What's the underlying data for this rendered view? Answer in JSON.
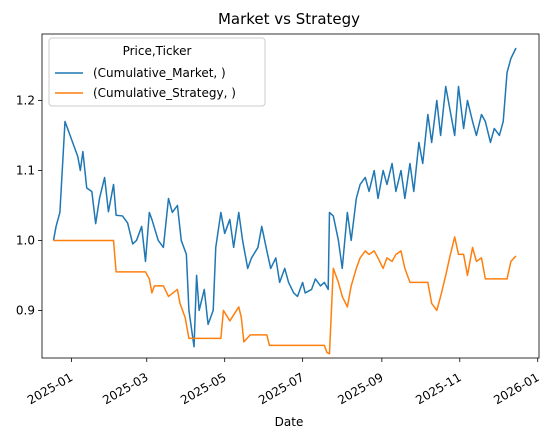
{
  "chart_data": {
    "type": "line",
    "title": "Market vs Strategy",
    "xlabel": "Date",
    "ylabel": "",
    "xlim": [
      "2024-12-09",
      "2026-01-02"
    ],
    "ylim": [
      0.832,
      1.295
    ],
    "x_ticks": [
      "2025-01-01",
      "2025-03-01",
      "2025-05-01",
      "2025-07-01",
      "2025-09-01",
      "2025-11-01",
      "2026-01-01"
    ],
    "x_tick_labels": [
      "2025-01",
      "2025-03",
      "2025-05",
      "2025-07",
      "2025-09",
      "2025-11",
      "2026-01"
    ],
    "y_ticks": [
      0.9,
      1.0,
      1.1,
      1.2
    ],
    "y_tick_labels": [
      "0.9",
      "1.0",
      "1.1",
      "1.2"
    ],
    "grid": false,
    "legend": {
      "title": "Price,Ticker",
      "position": "top-left"
    },
    "series": [
      {
        "name": "(Cumulative_Market, )",
        "color": "#1f77b4",
        "points": [
          [
            "2024-12-18",
            1.0
          ],
          [
            "2024-12-20",
            1.02
          ],
          [
            "2024-12-23",
            1.04
          ],
          [
            "2024-12-27",
            1.17
          ],
          [
            "2024-12-31",
            1.15
          ],
          [
            "2025-01-06",
            1.12
          ],
          [
            "2025-01-08",
            1.1
          ],
          [
            "2025-01-10",
            1.127
          ],
          [
            "2025-01-13",
            1.075
          ],
          [
            "2025-01-17",
            1.07
          ],
          [
            "2025-01-20",
            1.024
          ],
          [
            "2025-01-23",
            1.06
          ],
          [
            "2025-01-27",
            1.09
          ],
          [
            "2025-01-30",
            1.041
          ],
          [
            "2025-02-03",
            1.08
          ],
          [
            "2025-02-05",
            1.036
          ],
          [
            "2025-02-10",
            1.035
          ],
          [
            "2025-02-14",
            1.025
          ],
          [
            "2025-02-18",
            0.995
          ],
          [
            "2025-02-21",
            1.0
          ],
          [
            "2025-02-25",
            1.02
          ],
          [
            "2025-02-28",
            0.97
          ],
          [
            "2025-03-03",
            1.04
          ],
          [
            "2025-03-05",
            1.03
          ],
          [
            "2025-03-10",
            1.0
          ],
          [
            "2025-03-14",
            0.99
          ],
          [
            "2025-03-18",
            1.06
          ],
          [
            "2025-03-21",
            1.04
          ],
          [
            "2025-03-25",
            1.05
          ],
          [
            "2025-03-28",
            1.0
          ],
          [
            "2025-04-01",
            0.98
          ],
          [
            "2025-04-03",
            0.9
          ],
          [
            "2025-04-07",
            0.848
          ],
          [
            "2025-04-09",
            0.95
          ],
          [
            "2025-04-11",
            0.9
          ],
          [
            "2025-04-15",
            0.93
          ],
          [
            "2025-04-18",
            0.88
          ],
          [
            "2025-04-22",
            0.9
          ],
          [
            "2025-04-24",
            0.99
          ],
          [
            "2025-04-28",
            1.04
          ],
          [
            "2025-05-01",
            1.01
          ],
          [
            "2025-05-05",
            1.03
          ],
          [
            "2025-05-08",
            0.99
          ],
          [
            "2025-05-12",
            1.04
          ],
          [
            "2025-05-15",
            1.0
          ],
          [
            "2025-05-19",
            0.96
          ],
          [
            "2025-05-22",
            0.975
          ],
          [
            "2025-05-27",
            0.99
          ],
          [
            "2025-05-30",
            1.02
          ],
          [
            "2025-06-03",
            0.985
          ],
          [
            "2025-06-06",
            0.96
          ],
          [
            "2025-06-10",
            0.975
          ],
          [
            "2025-06-13",
            0.94
          ],
          [
            "2025-06-17",
            0.96
          ],
          [
            "2025-06-20",
            0.94
          ],
          [
            "2025-06-24",
            0.925
          ],
          [
            "2025-06-27",
            0.92
          ],
          [
            "2025-07-01",
            0.94
          ],
          [
            "2025-07-03",
            0.925
          ],
          [
            "2025-07-08",
            0.93
          ],
          [
            "2025-07-11",
            0.945
          ],
          [
            "2025-07-15",
            0.935
          ],
          [
            "2025-07-18",
            0.94
          ],
          [
            "2025-07-21",
            0.93
          ],
          [
            "2025-07-22",
            1.04
          ],
          [
            "2025-07-25",
            1.035
          ],
          [
            "2025-07-29",
            1.0
          ],
          [
            "2025-08-01",
            0.96
          ],
          [
            "2025-08-05",
            1.04
          ],
          [
            "2025-08-08",
            1.0
          ],
          [
            "2025-08-12",
            1.06
          ],
          [
            "2025-08-15",
            1.08
          ],
          [
            "2025-08-19",
            1.09
          ],
          [
            "2025-08-22",
            1.07
          ],
          [
            "2025-08-26",
            1.1
          ],
          [
            "2025-08-29",
            1.06
          ],
          [
            "2025-09-02",
            1.1
          ],
          [
            "2025-09-05",
            1.08
          ],
          [
            "2025-09-09",
            1.11
          ],
          [
            "2025-09-12",
            1.07
          ],
          [
            "2025-09-16",
            1.1
          ],
          [
            "2025-09-19",
            1.06
          ],
          [
            "2025-09-23",
            1.11
          ],
          [
            "2025-09-26",
            1.07
          ],
          [
            "2025-09-30",
            1.14
          ],
          [
            "2025-10-03",
            1.11
          ],
          [
            "2025-10-07",
            1.18
          ],
          [
            "2025-10-10",
            1.14
          ],
          [
            "2025-10-14",
            1.2
          ],
          [
            "2025-10-17",
            1.15
          ],
          [
            "2025-10-21",
            1.22
          ],
          [
            "2025-10-24",
            1.19
          ],
          [
            "2025-10-28",
            1.15
          ],
          [
            "2025-10-31",
            1.22
          ],
          [
            "2025-11-04",
            1.16
          ],
          [
            "2025-11-07",
            1.2
          ],
          [
            "2025-11-11",
            1.17
          ],
          [
            "2025-11-14",
            1.15
          ],
          [
            "2025-11-18",
            1.18
          ],
          [
            "2025-11-21",
            1.17
          ],
          [
            "2025-11-25",
            1.14
          ],
          [
            "2025-11-28",
            1.16
          ],
          [
            "2025-12-02",
            1.15
          ],
          [
            "2025-12-05",
            1.17
          ],
          [
            "2025-12-08",
            1.24
          ],
          [
            "2025-12-11",
            1.26
          ],
          [
            "2025-12-15",
            1.275
          ]
        ]
      },
      {
        "name": "(Cumulative_Strategy, )",
        "color": "#ff7f0e",
        "points": [
          [
            "2024-12-18",
            1.0
          ],
          [
            "2025-02-03",
            1.0
          ],
          [
            "2025-02-05",
            0.955
          ],
          [
            "2025-02-28",
            0.955
          ],
          [
            "2025-03-03",
            0.945
          ],
          [
            "2025-03-05",
            0.925
          ],
          [
            "2025-03-07",
            0.935
          ],
          [
            "2025-03-14",
            0.935
          ],
          [
            "2025-03-18",
            0.92
          ],
          [
            "2025-03-25",
            0.93
          ],
          [
            "2025-03-27",
            0.91
          ],
          [
            "2025-03-31",
            0.89
          ],
          [
            "2025-04-03",
            0.86
          ],
          [
            "2025-04-28",
            0.86
          ],
          [
            "2025-04-30",
            0.9
          ],
          [
            "2025-05-05",
            0.885
          ],
          [
            "2025-05-12",
            0.905
          ],
          [
            "2025-05-14",
            0.89
          ],
          [
            "2025-05-16",
            0.855
          ],
          [
            "2025-05-21",
            0.865
          ],
          [
            "2025-06-03",
            0.865
          ],
          [
            "2025-06-05",
            0.85
          ],
          [
            "2025-07-18",
            0.85
          ],
          [
            "2025-07-20",
            0.84
          ],
          [
            "2025-07-22",
            0.838
          ],
          [
            "2025-07-25",
            0.96
          ],
          [
            "2025-07-29",
            0.94
          ],
          [
            "2025-08-01",
            0.92
          ],
          [
            "2025-08-05",
            0.905
          ],
          [
            "2025-08-08",
            0.935
          ],
          [
            "2025-08-12",
            0.96
          ],
          [
            "2025-08-15",
            0.975
          ],
          [
            "2025-08-19",
            0.985
          ],
          [
            "2025-08-22",
            0.98
          ],
          [
            "2025-08-26",
            0.985
          ],
          [
            "2025-08-29",
            0.975
          ],
          [
            "2025-09-02",
            0.96
          ],
          [
            "2025-09-05",
            0.975
          ],
          [
            "2025-09-09",
            0.97
          ],
          [
            "2025-09-12",
            0.98
          ],
          [
            "2025-09-16",
            0.985
          ],
          [
            "2025-09-19",
            0.96
          ],
          [
            "2025-09-23",
            0.94
          ],
          [
            "2025-10-07",
            0.94
          ],
          [
            "2025-10-10",
            0.91
          ],
          [
            "2025-10-14",
            0.9
          ],
          [
            "2025-10-17",
            0.92
          ],
          [
            "2025-10-21",
            0.95
          ],
          [
            "2025-10-24",
            0.975
          ],
          [
            "2025-10-28",
            1.005
          ],
          [
            "2025-10-31",
            0.98
          ],
          [
            "2025-11-04",
            0.98
          ],
          [
            "2025-11-07",
            0.95
          ],
          [
            "2025-11-11",
            0.99
          ],
          [
            "2025-11-14",
            0.97
          ],
          [
            "2025-11-18",
            0.975
          ],
          [
            "2025-11-21",
            0.945
          ],
          [
            "2025-12-08",
            0.945
          ],
          [
            "2025-12-11",
            0.97
          ],
          [
            "2025-12-15",
            0.978
          ]
        ]
      }
    ]
  }
}
